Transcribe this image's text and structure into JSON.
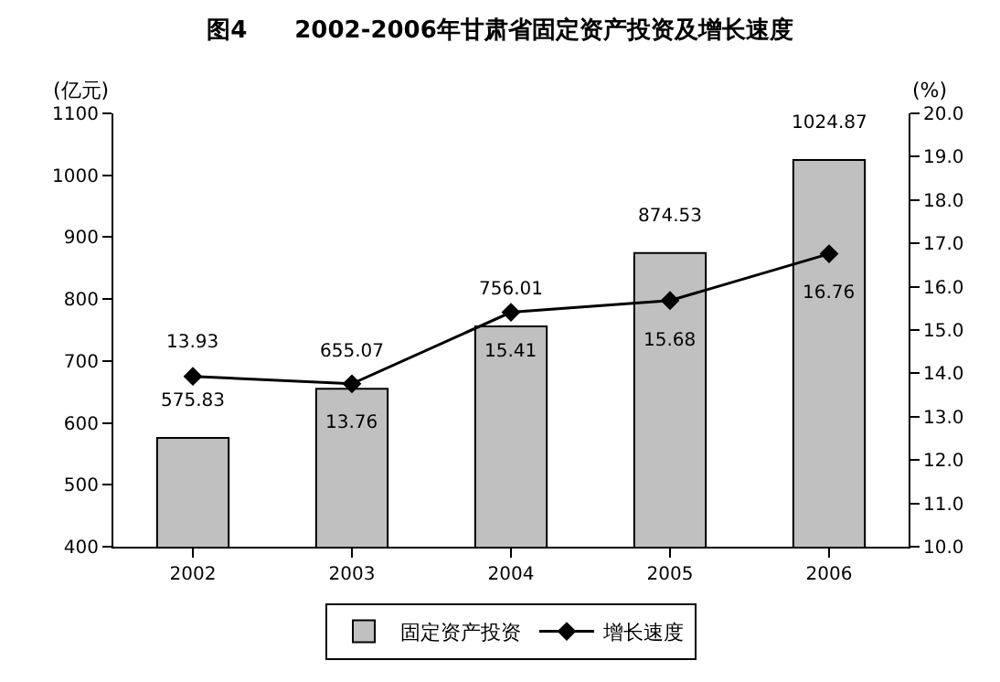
{
  "chart_data": {
    "type": "bar",
    "title": "图4　　2002-2006年甘肃省固定资产投资及增长速度",
    "ylabel": "(亿元)",
    "y2label": "(%)",
    "categories": [
      "2002",
      "2003",
      "2004",
      "2005",
      "2006"
    ],
    "series": [
      {
        "name": "固定资产投资",
        "color": "#c0c0c0",
        "values": [
          575.83,
          655.07,
          756.01,
          874.53,
          1024.87
        ]
      },
      {
        "name": "增长速度",
        "type": "line",
        "axis": "y2",
        "color": "#000000",
        "values": [
          13.93,
          13.76,
          15.41,
          15.68,
          16.76
        ]
      }
    ],
    "ylim": [
      400,
      1100
    ],
    "yticks": [
      400,
      500,
      600,
      700,
      800,
      900,
      1000,
      1100
    ],
    "y2lim": [
      10,
      20
    ],
    "y2ticks": [
      {
        "value": 10,
        "label": "10.0"
      },
      {
        "value": 11,
        "label": "11.0"
      },
      {
        "value": 12,
        "label": "12.0"
      },
      {
        "value": 13,
        "label": "13.0"
      },
      {
        "value": 14,
        "label": "14.0"
      },
      {
        "value": 15,
        "label": "15.0"
      },
      {
        "value": 16,
        "label": "16.0"
      },
      {
        "value": 17,
        "label": "17.0"
      },
      {
        "value": 18,
        "label": "18.0"
      },
      {
        "value": 19,
        "label": "19.0"
      },
      {
        "value": 20,
        "label": "20.0"
      }
    ],
    "data_labels": true,
    "legend": "bottom",
    "marker": "diamond",
    "line_style": "solid"
  }
}
